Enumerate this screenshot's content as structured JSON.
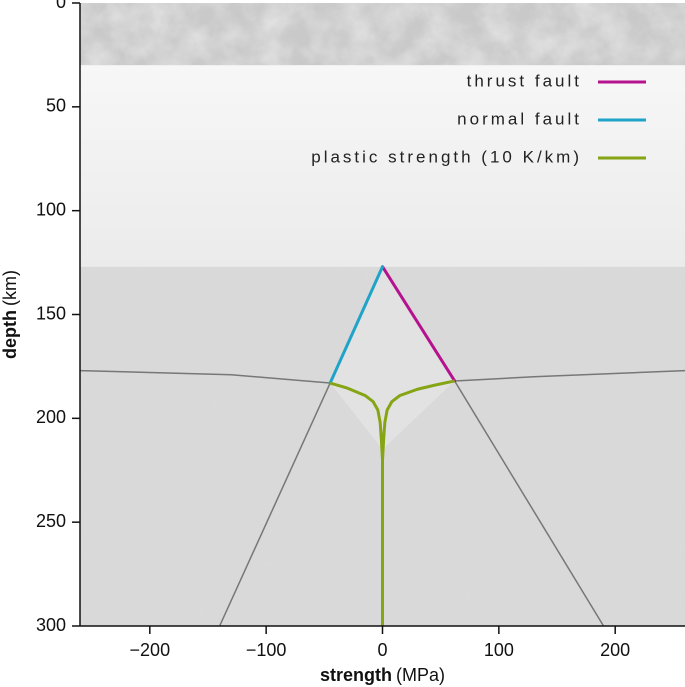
{
  "chart_data": {
    "type": "line",
    "xlabel": {
      "main": "strength",
      "unit": "(MPa)"
    },
    "ylabel": {
      "main": "depth",
      "unit": "(km)"
    },
    "xlim": [
      -260,
      260
    ],
    "ylim": [
      0,
      300
    ],
    "y_inverted": true,
    "x_ticks": [
      -200,
      -100,
      0,
      100,
      200
    ],
    "x_tick_labels": [
      "−200",
      "−100",
      "0",
      "100",
      "200"
    ],
    "y_ticks": [
      0,
      50,
      100,
      150,
      200,
      250,
      300
    ],
    "y_tick_labels": [
      "0",
      "50",
      "100",
      "150",
      "200",
      "250",
      "300"
    ],
    "legend_position": "top-right",
    "series": [
      {
        "name": "thrust fault",
        "color": "#b5128f",
        "x": [
          0,
          62
        ],
        "y": [
          127,
          182
        ]
      },
      {
        "name": "normal fault",
        "color": "#1fa3c9",
        "x": [
          0,
          -45
        ],
        "y": [
          127,
          183
        ]
      },
      {
        "name": "plastic strength (10 K/km)",
        "color": "#86a514",
        "x": [
          -45,
          -30,
          -15,
          -8,
          -4,
          -2,
          -1,
          0,
          0,
          0,
          1,
          2,
          4,
          8,
          15,
          30,
          45,
          62
        ],
        "y": [
          183,
          185.5,
          189,
          192,
          196,
          202,
          210,
          220,
          300,
          220,
          210,
          202,
          196,
          192,
          189,
          186,
          184,
          182
        ]
      }
    ],
    "reference_lines": [
      {
        "role": "thrust-extension",
        "color": "#777777",
        "x": [
          62,
          190
        ],
        "y": [
          182,
          300
        ]
      },
      {
        "role": "normal-extension",
        "color": "#777777",
        "x": [
          -45,
          -140
        ],
        "y": [
          183,
          300
        ]
      },
      {
        "role": "boundary-right",
        "color": "#777777",
        "x": [
          62,
          130,
          260
        ],
        "y": [
          182,
          180,
          177
        ]
      },
      {
        "role": "boundary-left",
        "color": "#777777",
        "x": [
          -45,
          -130,
          -260
        ],
        "y": [
          183,
          179,
          177
        ]
      }
    ],
    "layers": [
      {
        "role": "top-textured-band",
        "depth": [
          0,
          30
        ],
        "color": "#c9c9c9"
      },
      {
        "role": "middle-light-band",
        "depth": [
          30,
          127
        ],
        "color": "#efefef"
      },
      {
        "role": "lower-grey-band",
        "depth": [
          127,
          300
        ],
        "color": "#d9d9d9"
      }
    ]
  }
}
